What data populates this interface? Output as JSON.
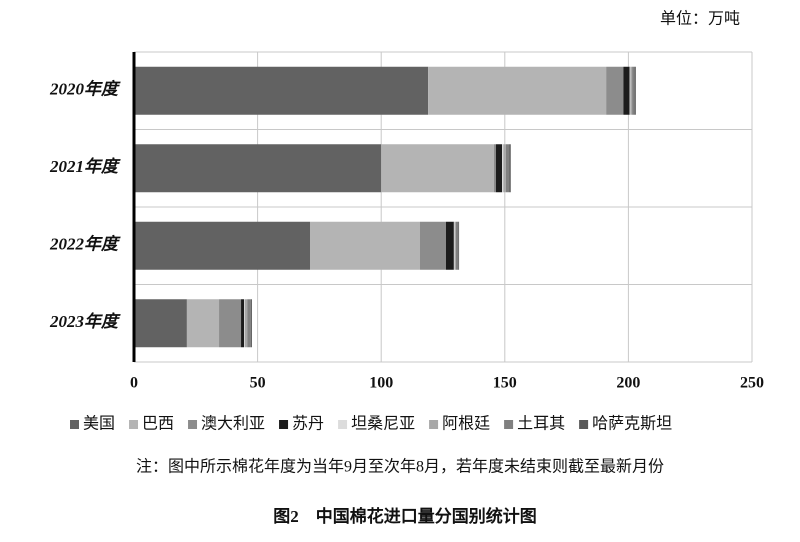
{
  "chart_data": {
    "type": "stacked-barh",
    "unit_label": "单位：万吨",
    "note": "注：图中所示棉花年度为当年9月至次年8月，若年度未结束则截至最新月份",
    "caption": "图2　中国棉花进口量分国别统计图",
    "categories": [
      "2020年度",
      "2021年度",
      "2022年度",
      "2023年度"
    ],
    "series": [
      {
        "name": "美国",
        "color": "#626262",
        "values": [
          119,
          100,
          71.2,
          21.4
        ]
      },
      {
        "name": "巴西",
        "color": "#b4b4b4",
        "values": [
          72,
          45.6,
          44.5,
          13
        ]
      },
      {
        "name": "澳大利亚",
        "color": "#8c8c8c",
        "values": [
          7,
          0.8,
          10.5,
          8.9
        ]
      },
      {
        "name": "苏丹",
        "color": "#1c1c1c",
        "values": [
          2.5,
          2.5,
          3.2,
          1.2
        ]
      },
      {
        "name": "坦桑尼亚",
        "color": "#dcdcdc",
        "values": [
          0.3,
          0.5,
          0.3,
          0.3
        ]
      },
      {
        "name": "阿根廷",
        "color": "#a8a8a8",
        "values": [
          0.7,
          1,
          0.5,
          1
        ]
      },
      {
        "name": "土耳其",
        "color": "#808080",
        "values": [
          1,
          1.5,
          1,
          1.5
        ]
      },
      {
        "name": "哈萨克斯坦",
        "color": "#585858",
        "values": [
          0.5,
          0.5,
          0.3,
          0.4
        ]
      }
    ],
    "xlim": [
      0,
      250
    ],
    "xticks": [
      0,
      50,
      100,
      150,
      200,
      250
    ],
    "grid": true
  }
}
